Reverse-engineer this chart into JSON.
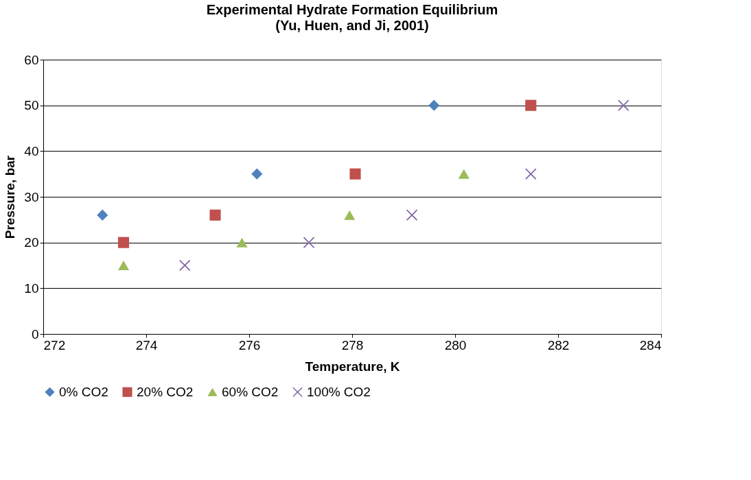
{
  "chart_data": {
    "type": "scatter",
    "title": "Experimental Hydrate Formation Equilibrium",
    "subtitle": "(Yu, Huen, and Ji, 2001)",
    "xlabel": "Temperature, K",
    "ylabel": "Pressure, bar",
    "xlim": [
      272,
      284
    ],
    "xticks": [
      272,
      274,
      276,
      278,
      280,
      282,
      284
    ],
    "ylim": [
      0,
      60
    ],
    "yticks": [
      0,
      10,
      20,
      30,
      40,
      50,
      60
    ],
    "grid": "y",
    "legend": "bottom",
    "series": [
      {
        "name": "0% CO2",
        "color": "#4f81bd",
        "marker": "diamond",
        "x": [
          273.15,
          276.15,
          279.59
        ],
        "values": [
          26,
          35,
          50
        ]
      },
      {
        "name": "20% CO2",
        "color": "#c0504d",
        "marker": "square",
        "x": [
          273.56,
          275.34,
          278.06,
          281.47
        ],
        "values": [
          20,
          26,
          35,
          50
        ]
      },
      {
        "name": "60% CO2",
        "color": "#9bbb59",
        "marker": "triangle",
        "x": [
          273.56,
          275.86,
          277.95,
          280.17
        ],
        "values": [
          15,
          20,
          26,
          35
        ]
      },
      {
        "name": "100% CO2",
        "color": "#8064a2",
        "marker": "cross",
        "x": [
          274.75,
          277.16,
          279.16,
          281.47,
          283.27
        ],
        "values": [
          15,
          20,
          26,
          35,
          50
        ]
      }
    ]
  }
}
